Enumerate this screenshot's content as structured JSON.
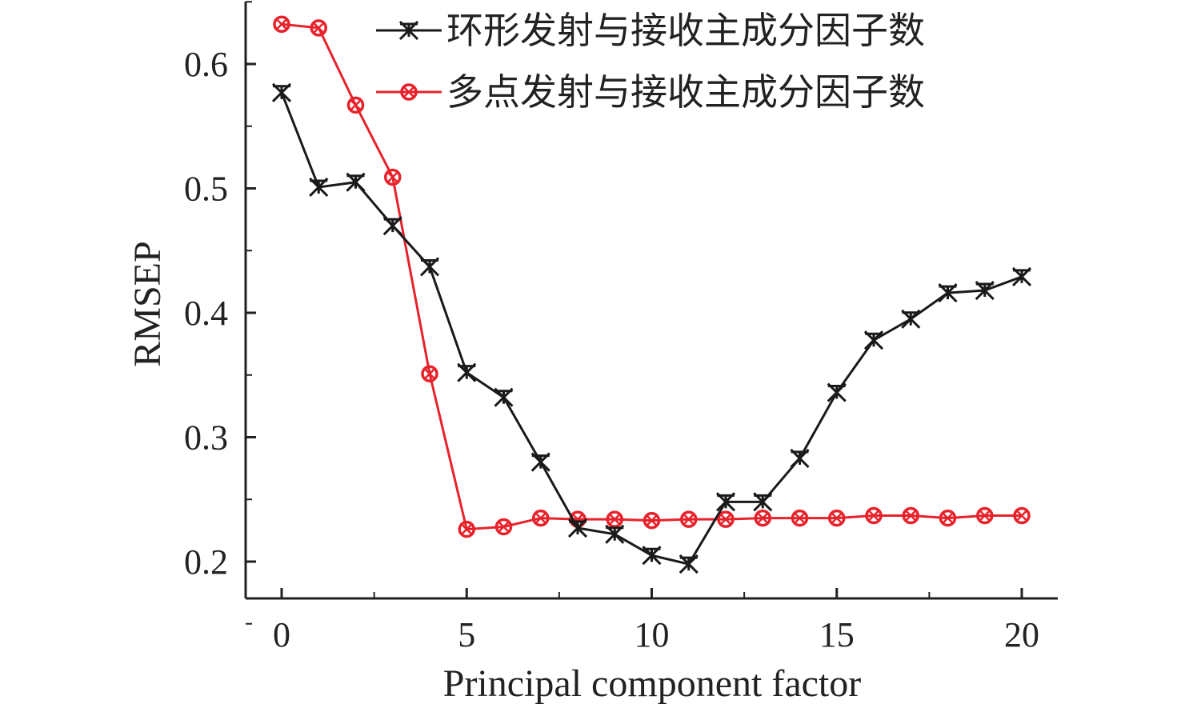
{
  "chart_data": {
    "type": "line",
    "title": "",
    "xlabel": "Principal component factor",
    "ylabel": "RMSEP",
    "xlim": [
      -1,
      21.1
    ],
    "ylim": [
      0.17,
      0.651
    ],
    "xticks": [
      0,
      5,
      10,
      15,
      20
    ],
    "xtick_labels": [
      "0",
      "5",
      "10",
      "15",
      "20"
    ],
    "yticks": [
      0.2,
      0.3,
      0.4,
      0.5,
      0.6
    ],
    "ytick_labels": [
      "0.2",
      "0.3",
      "0.4",
      "0.5",
      "0.6"
    ],
    "grid": false,
    "legend_position": "top-right",
    "x": [
      0,
      1,
      2,
      3,
      4,
      5,
      6,
      7,
      8,
      9,
      10,
      11,
      12,
      13,
      14,
      15,
      16,
      17,
      18,
      19,
      20
    ],
    "series": [
      {
        "name": "环形发射与接收主成分因子数",
        "color": "#1a1a1a",
        "marker": "star",
        "values": [
          0.577,
          0.501,
          0.505,
          0.47,
          0.437,
          0.352,
          0.332,
          0.28,
          0.227,
          0.222,
          0.205,
          0.198,
          0.248,
          0.248,
          0.283,
          0.336,
          0.378,
          0.395,
          0.416,
          0.418,
          0.429
        ]
      },
      {
        "name": "多点发射与接收主成分因子数",
        "color": "#e8222b",
        "marker": "circle-x",
        "values": [
          0.632,
          0.629,
          0.567,
          0.509,
          0.351,
          0.226,
          0.228,
          0.235,
          0.234,
          0.234,
          0.233,
          0.234,
          0.234,
          0.235,
          0.235,
          0.235,
          0.237,
          0.237,
          0.235,
          0.237,
          0.237
        ]
      }
    ]
  }
}
